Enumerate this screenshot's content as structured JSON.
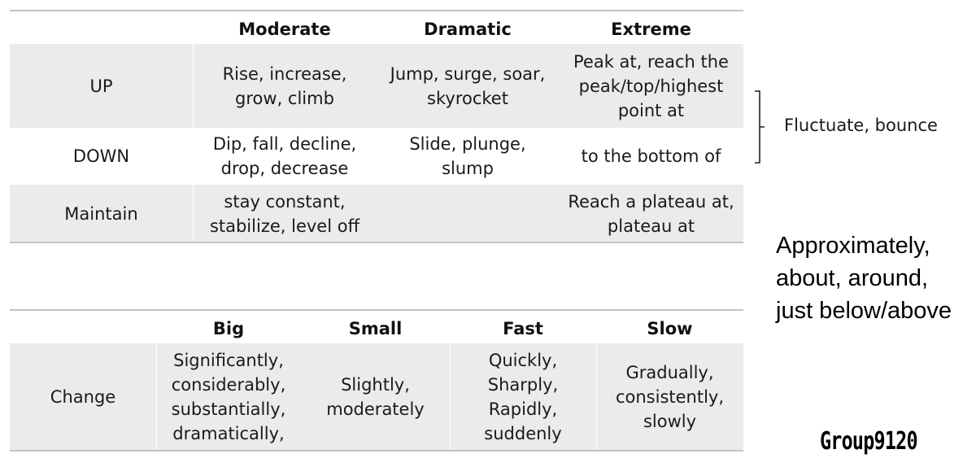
{
  "top_table": {
    "headers": [
      "",
      "Moderate",
      "Dramatic",
      "Extreme"
    ],
    "rows": [
      {
        "label": "UP",
        "cells": [
          "Rise, increase,\ngrow, climb",
          "Jump, surge, soar,\nskyrocket",
          "Peak at, reach the\npeak/top/highest\npoint at"
        ]
      },
      {
        "label": "DOWN",
        "cells": [
          "Dip, fall, decline,\ndrop, decrease",
          "Slide, plunge,\nslump",
          "to the bottom of"
        ]
      },
      {
        "label": "Maintain",
        "cells": [
          "stay constant,\nstabilize, level off",
          "",
          "Reach a plateau at,\nplateau at"
        ]
      }
    ]
  },
  "side_note": "Fluctuate, bounce",
  "bottom_table": {
    "headers": [
      "",
      "Big",
      "Small",
      "Fast",
      "Slow"
    ],
    "rows": [
      {
        "label": "Change",
        "cells": [
          "Significantly,\nconsiderably,\nsubstantially,\ndramatically,",
          "Slightly,\nmoderately",
          "Quickly,\nSharply,\nRapidly,\nsuddenly",
          "Gradually,\nconsistently,\nslowly"
        ]
      }
    ]
  },
  "approx_text": "Approximately,\nabout, around,\njust below/above",
  "watermark": "Group9120"
}
